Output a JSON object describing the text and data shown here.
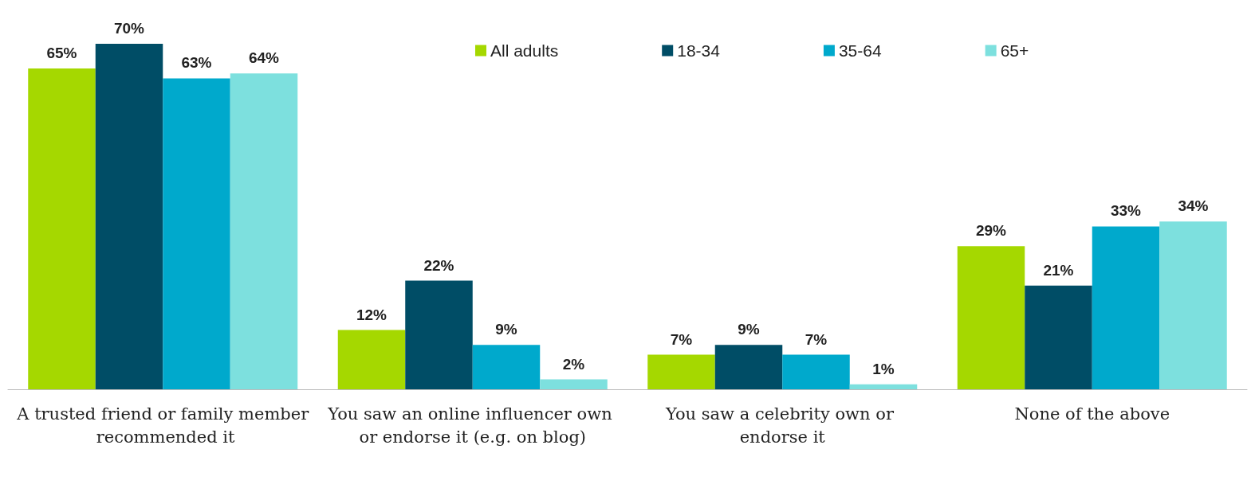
{
  "chart_data": {
    "type": "bar",
    "categories": [
      "A trusted friend or family member recommended it",
      "You saw an online influencer own or endorse it (e.g. on blog)",
      "You saw a celebrity own or endorse it",
      "None of the above"
    ],
    "series": [
      {
        "name": "All adults",
        "color": "#a5d800",
        "values": [
          65,
          12,
          7,
          29
        ],
        "value_labels": [
          "65%",
          "12%",
          "7%",
          "29%"
        ]
      },
      {
        "name": "18-34",
        "color": "#004d66",
        "values": [
          70,
          22,
          9,
          21
        ],
        "value_labels": [
          "70%",
          "22%",
          "9%",
          "21%"
        ]
      },
      {
        "name": "35-64",
        "color": "#00a9cc",
        "values": [
          63,
          9,
          7,
          33
        ],
        "value_labels": [
          "63%",
          "9%",
          "7%",
          "33%"
        ]
      },
      {
        "name": "65+",
        "color": "#7de0de",
        "values": [
          64,
          2,
          1,
          34
        ],
        "value_labels": [
          "64%",
          "2%",
          "1%",
          "34%"
        ]
      }
    ],
    "legend": "top",
    "grid": false
  }
}
